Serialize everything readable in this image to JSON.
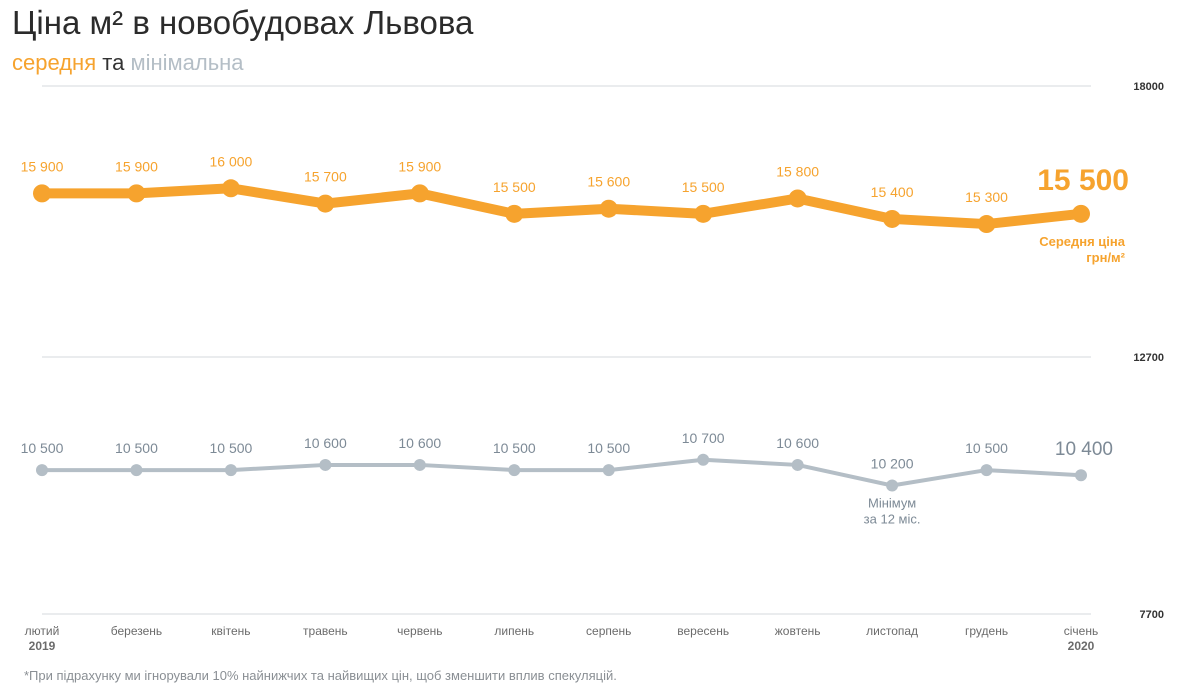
{
  "title": "Ціна м² в новобудовах Львова",
  "subtitle": {
    "average": "середня",
    "and": "та",
    "minimum": "мінімальна"
  },
  "footnote": "*При підрахунку ми ігнорували 10% найнижчих та найвищих цін, щоб зменшити вплив спекуляцій.",
  "colors": {
    "average": "#f6a32e",
    "minimum": "#b4bec6",
    "minimum_text": "#7d8a96"
  },
  "chart_data": {
    "type": "line",
    "categories": [
      [
        "лютий",
        "2019"
      ],
      [
        "березень"
      ],
      [
        "квітень"
      ],
      [
        "травень"
      ],
      [
        "червень"
      ],
      [
        "липень"
      ],
      [
        "серпень"
      ],
      [
        "вересень"
      ],
      [
        "жовтень"
      ],
      [
        "листопад"
      ],
      [
        "грудень"
      ],
      [
        "січень",
        "2020"
      ]
    ],
    "y_ticks": [
      "18000",
      "12700",
      "7700"
    ],
    "ylim": [
      7700,
      18000
    ],
    "grid": true,
    "series": [
      {
        "key": "average",
        "values": [
          15900,
          15900,
          16000,
          15700,
          15900,
          15500,
          15600,
          15500,
          15800,
          15400,
          15300,
          15500
        ],
        "labels": [
          "15 900",
          "15 900",
          "16 000",
          "15 700",
          "15 900",
          "15 500",
          "15 600",
          "15 500",
          "15 800",
          "15 400",
          "15 300",
          "15 500"
        ],
        "last_label_caption": [
          "Середня ціна",
          "грн/м²"
        ]
      },
      {
        "key": "minimum",
        "values": [
          10500,
          10500,
          10500,
          10600,
          10600,
          10500,
          10500,
          10700,
          10600,
          10200,
          10500,
          10400
        ],
        "labels": [
          "10 500",
          "10 500",
          "10 500",
          "10 600",
          "10 600",
          "10 500",
          "10 500",
          "10 700",
          "10 600",
          "10 200",
          "10 500",
          "10 400"
        ],
        "annotation": {
          "index": 9,
          "lines": [
            "Мінімум",
            "за 12 міс."
          ]
        }
      }
    ]
  }
}
